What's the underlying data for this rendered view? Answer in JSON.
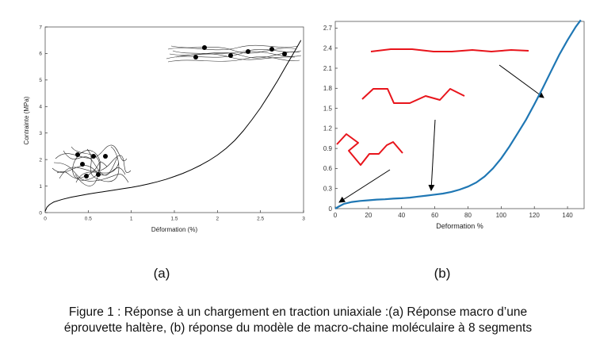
{
  "chart_data": [
    {
      "type": "line",
      "panel": "(a)",
      "xlabel": "Déformation (%)",
      "ylabel": "Contrainte (MPa)",
      "xlim": [
        0,
        3
      ],
      "ylim": [
        0,
        7
      ],
      "xticks": [
        "0",
        "0.5",
        "1",
        "1.5",
        "2",
        "2.5",
        "3"
      ],
      "yticks": [
        "0",
        "1",
        "2",
        "3",
        "4",
        "5",
        "6",
        "7"
      ],
      "grid": false,
      "series": [
        {
          "color": "#000000",
          "x": [
            0,
            0.02,
            0.05,
            0.1,
            0.2,
            0.3,
            0.4,
            0.5,
            0.6,
            0.7,
            0.8,
            0.9,
            1.0,
            1.1,
            1.2,
            1.3,
            1.4,
            1.5,
            1.6,
            1.7,
            1.8,
            1.9,
            2.0,
            2.1,
            2.2,
            2.3,
            2.4,
            2.5,
            2.6,
            2.7,
            2.8,
            2.9,
            2.97
          ],
          "y": [
            0.05,
            0.2,
            0.3,
            0.4,
            0.5,
            0.58,
            0.64,
            0.7,
            0.75,
            0.8,
            0.85,
            0.9,
            0.95,
            1.01,
            1.08,
            1.16,
            1.25,
            1.36,
            1.48,
            1.62,
            1.78,
            1.96,
            2.17,
            2.42,
            2.72,
            3.08,
            3.5,
            3.95,
            4.45,
            4.98,
            5.55,
            6.1,
            6.5
          ]
        }
      ]
    },
    {
      "type": "line",
      "panel": "(b)",
      "xlabel": "Deformation %",
      "ylabel": "",
      "xlim": [
        0,
        150
      ],
      "ylim": [
        0,
        2.8
      ],
      "xticks": [
        "0",
        "20",
        "40",
        "60",
        "80",
        "100",
        "120",
        "140"
      ],
      "yticks": [
        "0",
        "0.3",
        "0.6",
        "0.9",
        "1.2",
        "1.5",
        "1.8",
        "2.1",
        "2.4",
        "2.7"
      ],
      "grid": false,
      "series": [
        {
          "color": "#1f77b4",
          "x": [
            0,
            2,
            5,
            10,
            15,
            20,
            25,
            30,
            35,
            40,
            45,
            50,
            55,
            60,
            65,
            70,
            75,
            80,
            85,
            90,
            95,
            100,
            105,
            110,
            115,
            120,
            125,
            130,
            135,
            140,
            145,
            148
          ],
          "y": [
            0.0,
            0.03,
            0.07,
            0.1,
            0.115,
            0.125,
            0.135,
            0.14,
            0.15,
            0.155,
            0.165,
            0.18,
            0.195,
            0.21,
            0.225,
            0.25,
            0.285,
            0.33,
            0.39,
            0.48,
            0.6,
            0.75,
            0.93,
            1.13,
            1.33,
            1.56,
            1.8,
            2.05,
            2.3,
            2.52,
            2.72,
            2.82
          ]
        }
      ]
    }
  ],
  "labels": {
    "panel_a": "(a)",
    "panel_b": "(b)"
  },
  "caption": {
    "line1": "Figure 1 : Réponse à un chargement en traction uniaxiale :(a) Réponse macro d’une",
    "line2": "éprouvette haltère, (b) réponse du modèle de macro-chaine moléculaire à 8 segments"
  },
  "colors": {
    "curve_a": "#000000",
    "curve_b": "#1f77b4",
    "chain": "#e8141b",
    "axis": "#333333"
  }
}
